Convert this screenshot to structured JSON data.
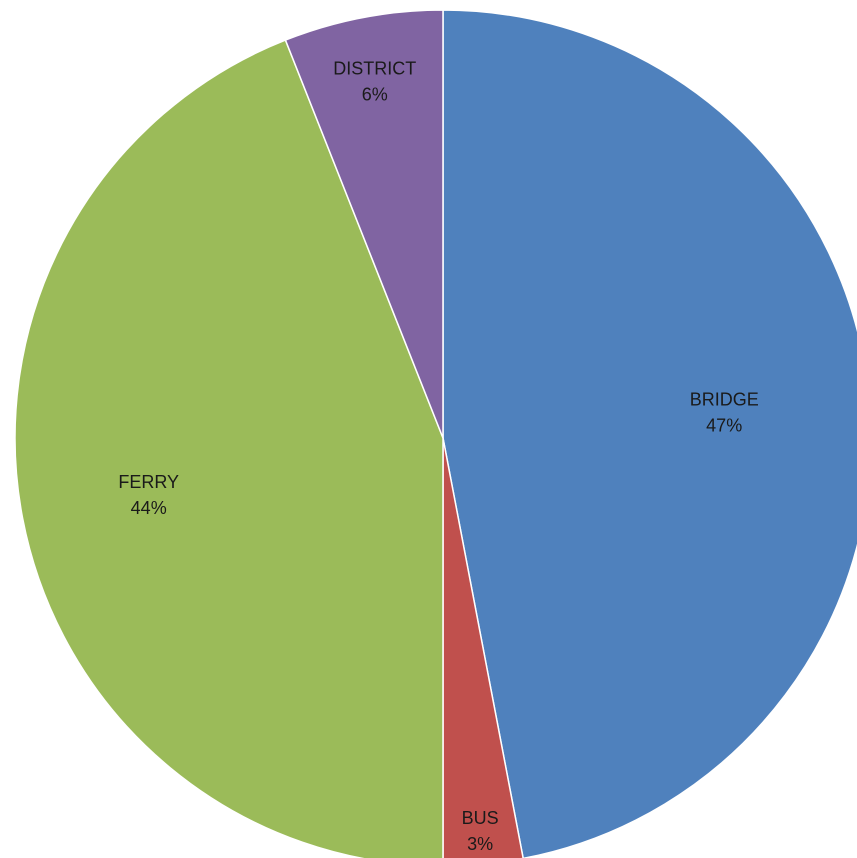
{
  "chart_data": {
    "type": "pie",
    "title": "",
    "slices": [
      {
        "name": "BRIDGE",
        "value": 47,
        "label": "47%",
        "color": "#4F81BD"
      },
      {
        "name": "BUS",
        "value": 3,
        "label": "3%",
        "color": "#C0504D"
      },
      {
        "name": "FERRY",
        "value": 44,
        "label": "44%",
        "color": "#9BBB59"
      },
      {
        "name": "DISTRICT",
        "value": 6,
        "label": "6%",
        "color": "#8064A2"
      }
    ],
    "start_angle": "12 o'clock",
    "direction": "clockwise",
    "legend": "none",
    "labels_position": "inside"
  }
}
